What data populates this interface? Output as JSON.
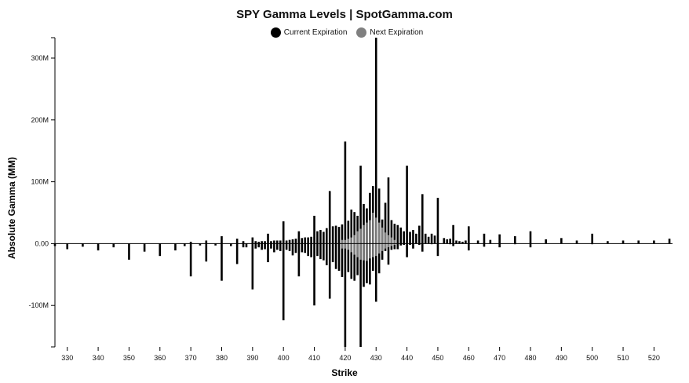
{
  "chart_data": {
    "type": "bar",
    "title": "SPY Gamma Levels | SpotGamma.com",
    "xlabel": "Strike",
    "ylabel": "Absolute Gamma (MM)",
    "ylim": [
      -167,
      333
    ],
    "xlim": [
      326,
      526
    ],
    "grid": false,
    "legend": "top-center",
    "y_ticks": [
      300,
      200,
      100,
      0,
      -100
    ],
    "y_tick_labels": [
      "300M",
      "200M",
      "100M",
      "0.00",
      "-100M"
    ],
    "x_ticks": [
      330,
      340,
      350,
      360,
      370,
      380,
      390,
      400,
      410,
      420,
      430,
      440,
      450,
      460,
      470,
      480,
      490,
      500,
      510,
      520
    ],
    "series": [
      {
        "name": "Current Expiration",
        "color": "#000000",
        "points": [
          [
            326,
            0,
            -4
          ],
          [
            330,
            0,
            -9
          ],
          [
            335,
            0,
            -5
          ],
          [
            340,
            0,
            -11
          ],
          [
            345,
            0,
            -6
          ],
          [
            350,
            0,
            -26
          ],
          [
            355,
            0,
            -13
          ],
          [
            360,
            0,
            -20
          ],
          [
            365,
            0,
            -11
          ],
          [
            368,
            0,
            -4
          ],
          [
            370,
            3,
            -53
          ],
          [
            373,
            0,
            -3
          ],
          [
            375,
            5,
            -29
          ],
          [
            378,
            0,
            -3
          ],
          [
            380,
            12,
            -60
          ],
          [
            383,
            0,
            -4
          ],
          [
            385,
            8,
            -33
          ],
          [
            387,
            4,
            -6
          ],
          [
            388,
            0,
            -6
          ],
          [
            390,
            10,
            -74
          ],
          [
            391,
            4,
            -8
          ],
          [
            392,
            3,
            -6
          ],
          [
            393,
            4,
            -10
          ],
          [
            394,
            4,
            -9
          ],
          [
            395,
            16,
            -30
          ],
          [
            396,
            4,
            -8
          ],
          [
            397,
            5,
            -14
          ],
          [
            398,
            5,
            -10
          ],
          [
            399,
            5,
            -12
          ],
          [
            400,
            36,
            -124
          ],
          [
            401,
            5,
            -10
          ],
          [
            402,
            6,
            -12
          ],
          [
            403,
            7,
            -19
          ],
          [
            404,
            8,
            -15
          ],
          [
            405,
            20,
            -53
          ],
          [
            406,
            9,
            -14
          ],
          [
            407,
            10,
            -15
          ],
          [
            408,
            10,
            -20
          ],
          [
            409,
            11,
            -22
          ],
          [
            410,
            45,
            -100
          ],
          [
            411,
            20,
            -20
          ],
          [
            412,
            22,
            -25
          ],
          [
            413,
            19,
            -27
          ],
          [
            414,
            25,
            -35
          ],
          [
            415,
            85,
            -89
          ],
          [
            416,
            28,
            -30
          ],
          [
            417,
            29,
            -41
          ],
          [
            418,
            27,
            -44
          ],
          [
            419,
            31,
            -54
          ],
          [
            420,
            165,
            -167
          ],
          [
            421,
            37,
            -46
          ],
          [
            422,
            55,
            -57
          ],
          [
            423,
            51,
            -60
          ],
          [
            424,
            45,
            -51
          ],
          [
            425,
            126,
            -167
          ],
          [
            426,
            64,
            -70
          ],
          [
            427,
            57,
            -64
          ],
          [
            428,
            82,
            -66
          ],
          [
            429,
            93,
            -44
          ],
          [
            430,
            333,
            -94
          ],
          [
            431,
            89,
            -48
          ],
          [
            432,
            39,
            -26
          ],
          [
            433,
            66,
            -12
          ],
          [
            434,
            107,
            -34
          ],
          [
            435,
            38,
            -10
          ],
          [
            436,
            32,
            -9
          ],
          [
            437,
            30,
            -9
          ],
          [
            438,
            26,
            -3
          ],
          [
            439,
            20,
            -2
          ],
          [
            440,
            126,
            -22
          ],
          [
            441,
            19,
            -2
          ],
          [
            442,
            22,
            -8
          ],
          [
            443,
            16,
            0
          ],
          [
            444,
            29,
            -2
          ],
          [
            445,
            80,
            -13
          ],
          [
            446,
            16,
            0
          ],
          [
            447,
            11,
            0
          ],
          [
            448,
            16,
            -1
          ],
          [
            449,
            13,
            0
          ],
          [
            450,
            74,
            -20
          ],
          [
            452,
            9,
            0
          ],
          [
            453,
            7,
            0
          ],
          [
            454,
            8,
            -1
          ],
          [
            455,
            30,
            -4
          ],
          [
            456,
            5,
            0
          ],
          [
            457,
            4,
            0
          ],
          [
            458,
            3,
            0
          ],
          [
            459,
            5,
            0
          ],
          [
            460,
            28,
            -11
          ],
          [
            463,
            5,
            0
          ],
          [
            465,
            16,
            -5
          ],
          [
            467,
            6,
            0
          ],
          [
            470,
            15,
            -6
          ],
          [
            475,
            12,
            -1
          ],
          [
            480,
            20,
            -6
          ],
          [
            485,
            7,
            0
          ],
          [
            490,
            9,
            0
          ],
          [
            495,
            5,
            0
          ],
          [
            500,
            16,
            -1
          ],
          [
            505,
            4,
            0
          ],
          [
            510,
            5,
            0
          ],
          [
            515,
            5,
            0
          ],
          [
            520,
            5,
            0
          ],
          [
            525,
            8,
            0
          ]
        ]
      },
      {
        "name": "Next Expiration",
        "color": "#808080",
        "points": [
          [
            419,
            6,
            -8
          ],
          [
            420,
            6,
            -8
          ],
          [
            421,
            8,
            -10
          ],
          [
            422,
            10,
            -14
          ],
          [
            423,
            14,
            -18
          ],
          [
            424,
            20,
            -22
          ],
          [
            425,
            24,
            -26
          ],
          [
            426,
            30,
            -27
          ],
          [
            427,
            34,
            -28
          ],
          [
            428,
            38,
            -24
          ],
          [
            429,
            50,
            -22
          ],
          [
            430,
            42,
            -20
          ],
          [
            431,
            34,
            -16
          ],
          [
            432,
            26,
            -12
          ],
          [
            433,
            18,
            -8
          ],
          [
            434,
            14,
            -6
          ],
          [
            435,
            10,
            -4
          ],
          [
            436,
            6,
            -2
          ]
        ]
      }
    ]
  }
}
